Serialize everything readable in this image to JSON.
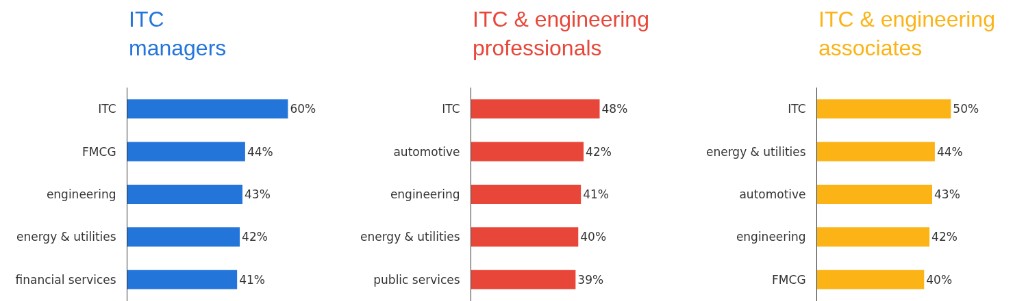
{
  "chart_data": [
    {
      "type": "bar",
      "orientation": "horizontal",
      "title": "ITC\nmanagers",
      "categories": [
        "ITC",
        "FMCG",
        "engineering",
        "energy & utilities",
        "financial services"
      ],
      "values": [
        60,
        44,
        43,
        42,
        41
      ],
      "value_labels": [
        "60%",
        "44%",
        "43%",
        "42%",
        "41%"
      ],
      "color": "#2475d9"
    },
    {
      "type": "bar",
      "orientation": "horizontal",
      "title": "ITC & engineering\nprofessionals",
      "categories": [
        "ITC",
        "automotive",
        "engineering",
        "energy & utilities",
        "public services"
      ],
      "values": [
        48,
        42,
        41,
        40,
        39
      ],
      "value_labels": [
        "48%",
        "42%",
        "41%",
        "40%",
        "39%"
      ],
      "color": "#e84639"
    },
    {
      "type": "bar",
      "orientation": "horizontal",
      "title": "ITC & engineering\nassociates",
      "categories": [
        "ITC",
        "energy & utilities",
        "automotive",
        "engineering",
        "FMCG"
      ],
      "values": [
        50,
        44,
        43,
        42,
        40
      ],
      "value_labels": [
        "50%",
        "44%",
        "43%",
        "42%",
        "40%"
      ],
      "color": "#fbb316"
    }
  ]
}
